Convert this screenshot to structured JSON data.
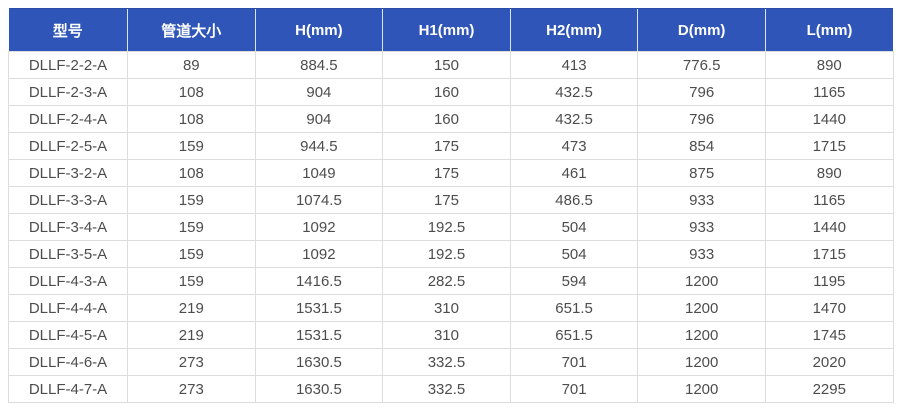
{
  "chart_data": {
    "type": "table",
    "columns": [
      "型号",
      "管道大小",
      "H(mm)",
      "H1(mm)",
      "H2(mm)",
      "D(mm)",
      "L(mm)"
    ],
    "rows": [
      [
        "DLLF-2-2-A",
        "89",
        "884.5",
        "150",
        "413",
        "776.5",
        "890"
      ],
      [
        "DLLF-2-3-A",
        "108",
        "904",
        "160",
        "432.5",
        "796",
        "1165"
      ],
      [
        "DLLF-2-4-A",
        "108",
        "904",
        "160",
        "432.5",
        "796",
        "1440"
      ],
      [
        "DLLF-2-5-A",
        "159",
        "944.5",
        "175",
        "473",
        "854",
        "1715"
      ],
      [
        "DLLF-3-2-A",
        "108",
        "1049",
        "175",
        "461",
        "875",
        "890"
      ],
      [
        "DLLF-3-3-A",
        "159",
        "1074.5",
        "175",
        "486.5",
        "933",
        "1165"
      ],
      [
        "DLLF-3-4-A",
        "159",
        "1092",
        "192.5",
        "504",
        "933",
        "1440"
      ],
      [
        "DLLF-3-5-A",
        "159",
        "1092",
        "192.5",
        "504",
        "933",
        "1715"
      ],
      [
        "DLLF-4-3-A",
        "159",
        "1416.5",
        "282.5",
        "594",
        "1200",
        "1195"
      ],
      [
        "DLLF-4-4-A",
        "219",
        "1531.5",
        "310",
        "651.5",
        "1200",
        "1470"
      ],
      [
        "DLLF-4-5-A",
        "219",
        "1531.5",
        "310",
        "651.5",
        "1200",
        "1745"
      ],
      [
        "DLLF-4-6-A",
        "273",
        "1630.5",
        "332.5",
        "701",
        "1200",
        "2020"
      ],
      [
        "DLLF-4-7-A",
        "273",
        "1630.5",
        "332.5",
        "701",
        "1200",
        "2295"
      ]
    ]
  },
  "colors": {
    "header_bg": "#2e55b7",
    "header_text": "#ffffff",
    "row_bg": "#ffffff",
    "cell_text": "#4d4d4d",
    "border": "#dddddd"
  }
}
